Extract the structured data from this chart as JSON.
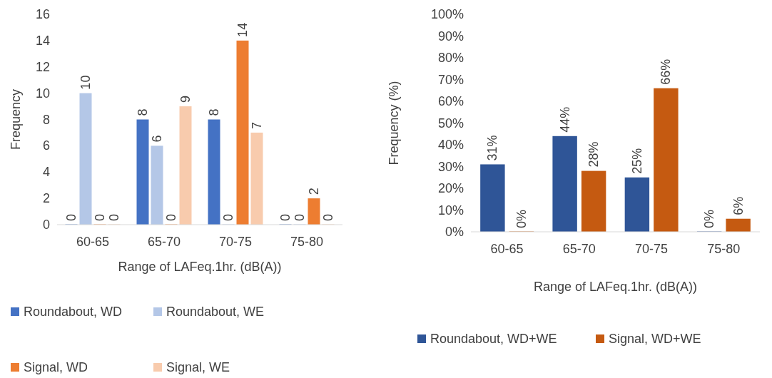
{
  "chart_data": [
    {
      "type": "bar",
      "categories": [
        "60-65",
        "65-70",
        "70-75",
        "75-80"
      ],
      "xlabel": "Range of LAFeq.1hr. (dB(A))",
      "ylabel": "Frequency",
      "series": [
        {
          "name": "Roundabout, WD",
          "color": "#4472c4",
          "values": [
            0,
            8,
            8,
            0
          ]
        },
        {
          "name": "Roundabout, WE",
          "color": "#b4c7e7",
          "values": [
            10,
            6,
            0,
            0
          ]
        },
        {
          "name": "Signal, WD",
          "color": "#ed7d31",
          "values": [
            0,
            0,
            14,
            2
          ]
        },
        {
          "name": "Signal, WE",
          "color": "#f8cbad",
          "values": [
            0,
            9,
            7,
            0
          ]
        }
      ],
      "ylim": [
        0,
        16
      ],
      "yticks": [
        0,
        2,
        4,
        6,
        8,
        10,
        12,
        14,
        16
      ],
      "data_labels": true,
      "legend": "bottom"
    },
    {
      "type": "bar",
      "categories": [
        "60-65",
        "65-70",
        "70-75",
        "75-80"
      ],
      "xlabel": "Range of LAFeq.1hr. (dB(A))",
      "ylabel": "Frequency (%)",
      "series": [
        {
          "name": "Roundabout, WD+WE",
          "color": "#2f5597",
          "values": [
            31,
            44,
            25,
            0
          ],
          "value_labels": [
            "31%",
            "44%",
            "25%",
            "0%"
          ]
        },
        {
          "name": "Signal, WD+WE",
          "color": "#c55a11",
          "values": [
            0,
            28,
            66,
            6
          ],
          "value_labels": [
            "0%",
            "28%",
            "66%",
            "6%"
          ]
        }
      ],
      "ylim": [
        0,
        100
      ],
      "yticks": [
        {
          "value": 0,
          "label": "0%"
        },
        {
          "value": 10,
          "label": "10%"
        },
        {
          "value": 20,
          "label": "20%"
        },
        {
          "value": 30,
          "label": "30%"
        },
        {
          "value": 40,
          "label": "40%"
        },
        {
          "value": 50,
          "label": "50%"
        },
        {
          "value": 60,
          "label": "60%"
        },
        {
          "value": 70,
          "label": "70%"
        },
        {
          "value": 80,
          "label": "80%"
        },
        {
          "value": 90,
          "label": "90%"
        },
        {
          "value": 100,
          "label": "100%"
        }
      ],
      "legend": "bottom"
    }
  ]
}
